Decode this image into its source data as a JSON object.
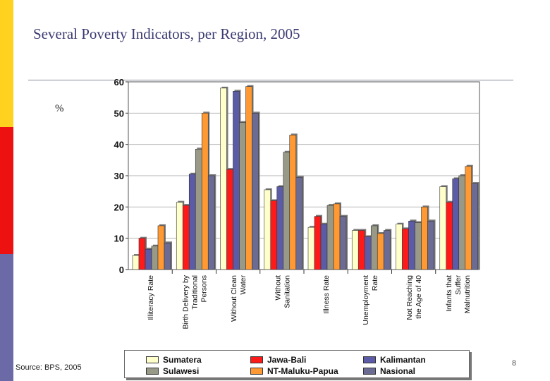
{
  "page": {
    "title": "Several Poverty Indicators, per Region, 2005",
    "unit_label": "%",
    "source": "Source: BPS, 2005",
    "page_number": "8",
    "stripe_colors": [
      "#ffd21f",
      "#ee1111",
      "#6b6aa6"
    ]
  },
  "chart_data": {
    "type": "bar",
    "title": "Several Poverty Indicators, per Region, 2005",
    "ylabel": "%",
    "xlabel": "",
    "ylim": [
      0,
      60
    ],
    "yticks": [
      0,
      10,
      20,
      30,
      40,
      50,
      60
    ],
    "grid": true,
    "legend_position": "bottom",
    "categories": [
      [
        "Illiteracy Rate"
      ],
      [
        "Birth Delivery by",
        "Traditional",
        "Persons"
      ],
      [
        "Without Clean",
        "Water"
      ],
      [
        "Without",
        "Sanitation"
      ],
      [
        "Illness Rate"
      ],
      [
        "Unemployment",
        "Rate"
      ],
      [
        "Not Reaching",
        "the Age of 40"
      ],
      [
        "Infants that",
        "Suffer",
        "Malnutrition"
      ]
    ],
    "series": [
      {
        "name": "Sumatera",
        "color": "#ffffcc",
        "values": [
          4.5,
          21.5,
          58,
          25.5,
          13.5,
          12.5,
          14.5,
          26.5
        ]
      },
      {
        "name": "Jawa-Bali",
        "color": "#ff1a1a",
        "values": [
          10,
          20.5,
          32,
          22,
          17,
          12.5,
          13,
          21.5
        ]
      },
      {
        "name": "Kalimantan",
        "color": "#5b5ba8",
        "values": [
          6.5,
          30.5,
          57,
          26.5,
          14.5,
          10.5,
          15.5,
          29
        ]
      },
      {
        "name": "Sulawesi",
        "color": "#999988",
        "values": [
          7.5,
          38.5,
          47,
          37.5,
          20.5,
          14,
          15,
          30
        ]
      },
      {
        "name": "NT-Maluku-Papua",
        "color": "#ff9933",
        "values": [
          14,
          50,
          58.5,
          43,
          21,
          11.5,
          20,
          33
        ]
      },
      {
        "name": "Nasional",
        "color": "#6b6b94",
        "values": [
          8.5,
          30,
          50,
          29.5,
          17,
          12.5,
          15.5,
          27.5
        ]
      }
    ]
  }
}
